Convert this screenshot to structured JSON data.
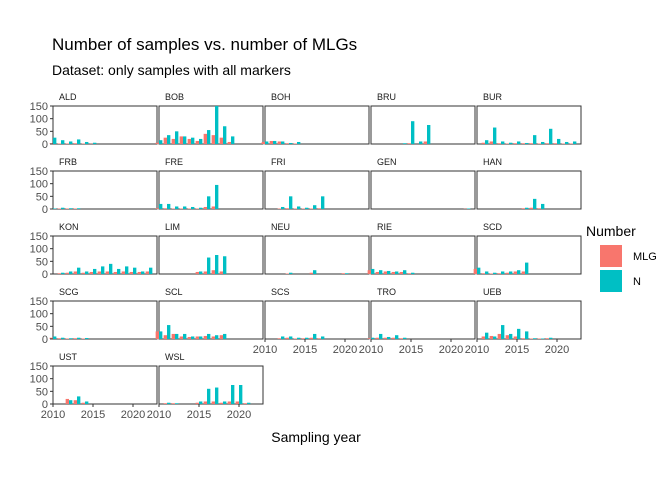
{
  "chart_data": {
    "type": "bar",
    "title": "Number of samples vs. number of MLGs",
    "subtitle": "Dataset: only samples with all markers",
    "xlabel": "Sampling year",
    "ylabel": "",
    "xlim": [
      2010,
      2023
    ],
    "ylim": [
      0,
      150
    ],
    "x_ticks": [
      2010,
      2015,
      2020
    ],
    "y_ticks": [
      0,
      50,
      100,
      150
    ],
    "legend": {
      "title": "Number",
      "placement": "right",
      "entries": [
        {
          "name": "MLG",
          "color": "#F8766D"
        },
        {
          "name": "N",
          "color": "#00BFC4"
        }
      ]
    },
    "panels": [
      {
        "name": "ALD",
        "years": [
          2010,
          2011,
          2012,
          2013,
          2014,
          2015
        ],
        "MLG": [
          3,
          2,
          2,
          3,
          2,
          1
        ],
        "N": [
          25,
          15,
          10,
          18,
          8,
          5
        ]
      },
      {
        "name": "BOB",
        "years": [
          2010,
          2011,
          2012,
          2013,
          2014,
          2015,
          2016,
          2017,
          2018,
          2019
        ],
        "MLG": [
          5,
          25,
          20,
          30,
          20,
          12,
          40,
          35,
          25,
          8
        ],
        "N": [
          15,
          35,
          50,
          30,
          25,
          20,
          55,
          150,
          70,
          30
        ]
      },
      {
        "name": "BOH",
        "years": [
          2010,
          2011,
          2012,
          2013,
          2014
        ],
        "MLG": [
          8,
          12,
          10,
          3,
          2
        ],
        "N": [
          10,
          12,
          10,
          4,
          8
        ]
      },
      {
        "name": "BRU",
        "years": [
          2014,
          2015,
          2016,
          2017
        ],
        "MLG": [
          0,
          3,
          0,
          10
        ],
        "N": [
          3,
          90,
          10,
          75
        ]
      },
      {
        "name": "BUR",
        "years": [
          2011,
          2012,
          2013,
          2014,
          2015,
          2016,
          2017,
          2018,
          2019,
          2020,
          2021,
          2022
        ],
        "MLG": [
          5,
          10,
          3,
          2,
          3,
          3,
          3,
          2,
          3,
          3,
          2,
          2
        ],
        "N": [
          15,
          65,
          10,
          5,
          10,
          4,
          35,
          8,
          60,
          20,
          8,
          10
        ]
      },
      {
        "name": "FRB",
        "years": [
          2010,
          2011,
          2012,
          2013
        ],
        "MLG": [
          2,
          2,
          2,
          2
        ],
        "N": [
          2,
          5,
          3,
          3
        ]
      },
      {
        "name": "FRE",
        "years": [
          2010,
          2011,
          2012,
          2013,
          2014,
          2015,
          2016,
          2017
        ],
        "MLG": [
          3,
          3,
          2,
          2,
          2,
          2,
          8,
          10
        ],
        "N": [
          20,
          20,
          10,
          10,
          8,
          5,
          50,
          95
        ]
      },
      {
        "name": "FRI",
        "years": [
          2012,
          2013,
          2014,
          2015,
          2016,
          2017
        ],
        "MLG": [
          2,
          3,
          2,
          2,
          2,
          3
        ],
        "N": [
          8,
          50,
          10,
          5,
          15,
          50
        ]
      },
      {
        "name": "GEN",
        "years": [
          2022
        ],
        "MLG": [
          1
        ],
        "N": [
          2
        ]
      },
      {
        "name": "HAN",
        "years": [
          2016,
          2017,
          2018
        ],
        "MLG": [
          3,
          5,
          3
        ],
        "N": [
          5,
          40,
          20
        ]
      },
      {
        "name": "KON",
        "years": [
          2011,
          2012,
          2013,
          2014,
          2015,
          2016,
          2017,
          2018,
          2019,
          2020,
          2021,
          2022
        ],
        "MLG": [
          3,
          5,
          10,
          5,
          8,
          10,
          10,
          8,
          10,
          8,
          8,
          10
        ],
        "N": [
          5,
          10,
          25,
          10,
          20,
          30,
          40,
          20,
          30,
          25,
          10,
          25
        ]
      },
      {
        "name": "LIM",
        "years": [
          2015,
          2016,
          2017,
          2018
        ],
        "MLG": [
          8,
          10,
          15,
          10
        ],
        "N": [
          10,
          65,
          75,
          70
        ]
      },
      {
        "name": "NEU",
        "years": [
          2013,
          2016,
          2020
        ],
        "MLG": [
          2,
          5,
          3
        ],
        "N": [
          5,
          15,
          3
        ]
      },
      {
        "name": "RIE",
        "years": [
          2010,
          2011,
          2012,
          2013,
          2014,
          2015
        ],
        "MLG": [
          15,
          8,
          10,
          8,
          8,
          3
        ],
        "N": [
          20,
          15,
          12,
          10,
          15,
          5
        ]
      },
      {
        "name": "SCD",
        "years": [
          2010,
          2011,
          2012,
          2013,
          2014,
          2015,
          2016
        ],
        "MLG": [
          20,
          3,
          2,
          3,
          5,
          10,
          10
        ],
        "N": [
          25,
          10,
          5,
          10,
          10,
          15,
          45
        ]
      },
      {
        "name": "SCG",
        "years": [
          2010,
          2011,
          2012,
          2013,
          2014
        ],
        "MLG": [
          5,
          3,
          2,
          3,
          2
        ],
        "N": [
          10,
          5,
          3,
          5,
          4
        ]
      },
      {
        "name": "SCL",
        "years": [
          2010,
          2011,
          2012,
          2013,
          2014,
          2015,
          2016,
          2017,
          2018
        ],
        "MLG": [
          30,
          15,
          20,
          10,
          8,
          10,
          12,
          10,
          15
        ],
        "N": [
          30,
          55,
          20,
          20,
          10,
          10,
          20,
          15,
          20
        ]
      },
      {
        "name": "SCS",
        "years": [
          2012,
          2013,
          2014,
          2015,
          2016,
          2017
        ],
        "MLG": [
          3,
          5,
          2,
          3,
          5,
          3
        ],
        "N": [
          10,
          10,
          5,
          5,
          20,
          10
        ]
      },
      {
        "name": "TRO",
        "years": [
          2010,
          2011,
          2012,
          2013,
          2014
        ],
        "MLG": [
          3,
          5,
          5,
          5,
          3
        ],
        "N": [
          5,
          20,
          8,
          15,
          5
        ]
      },
      {
        "name": "UEB",
        "years": [
          2011,
          2012,
          2013,
          2014,
          2015,
          2016,
          2017,
          2018,
          2019
        ],
        "MLG": [
          10,
          12,
          20,
          15,
          10,
          3,
          2,
          2,
          3
        ],
        "N": [
          25,
          10,
          55,
          20,
          40,
          30,
          3,
          2,
          5
        ]
      },
      {
        "name": "UST",
        "years": [
          2012,
          2013,
          2014
        ],
        "MLG": [
          20,
          15,
          5
        ],
        "N": [
          15,
          30,
          10
        ]
      },
      {
        "name": "WSL",
        "years": [
          2011,
          2012,
          2015,
          2016,
          2017,
          2018,
          2019,
          2020,
          2021
        ],
        "MLG": [
          3,
          3,
          5,
          10,
          10,
          5,
          10,
          10,
          3
        ],
        "N": [
          5,
          3,
          10,
          60,
          65,
          10,
          75,
          75,
          5
        ]
      }
    ]
  }
}
